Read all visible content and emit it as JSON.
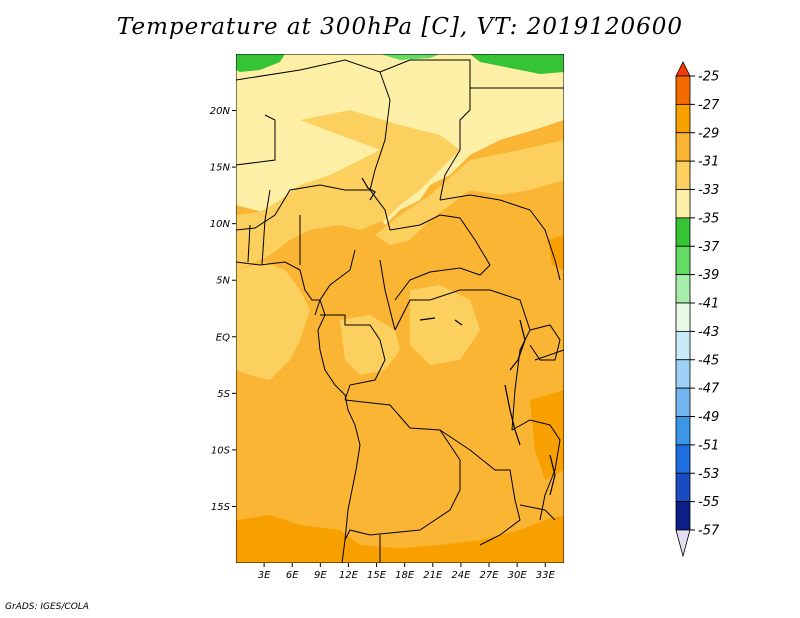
{
  "title": "Temperature at 300hPa [C], VT: 2019120600",
  "credit": "GrADS: IGES/COLA",
  "map": {
    "lat_ticks": [
      "20N",
      "15N",
      "10N",
      "5N",
      "EQ",
      "5S",
      "10S",
      "15S"
    ],
    "lat_values": [
      20,
      15,
      10,
      5,
      0,
      -5,
      -10,
      -15
    ],
    "lon_ticks": [
      "3E",
      "6E",
      "9E",
      "12E",
      "15E",
      "18E",
      "21E",
      "24E",
      "27E",
      "30E",
      "33E"
    ],
    "lon_values": [
      3,
      6,
      9,
      12,
      15,
      18,
      21,
      24,
      27,
      30,
      33
    ],
    "lat_range": [
      -20,
      25
    ],
    "lon_range": [
      0,
      35
    ]
  },
  "colorbar": {
    "labels": [
      "-25",
      "-27",
      "-29",
      "-31",
      "-33",
      "-35",
      "-37",
      "-39",
      "-41",
      "-43",
      "-45",
      "-47",
      "-49",
      "-51",
      "-53",
      "-55",
      "-57"
    ],
    "colors": [
      "#f03c00",
      "#f56a00",
      "#f8a000",
      "#fab535",
      "#fbd05e",
      "#fdf0a6",
      "#36c436",
      "#64dc64",
      "#a6ecaa",
      "#e6fae6",
      "#c8ebfa",
      "#9ed0f5",
      "#74b6f0",
      "#3c96e6",
      "#1e6ee0",
      "#1a4bc2",
      "#0c1f86",
      "#e0e0f2"
    ]
  },
  "fields": {
    "background": "#fab535",
    "pale_yellow": "#fdf0a6",
    "light_yellow": "#fbd05e",
    "orange": "#f8a000",
    "green": "#36c436",
    "light_green": "#64dc64"
  }
}
